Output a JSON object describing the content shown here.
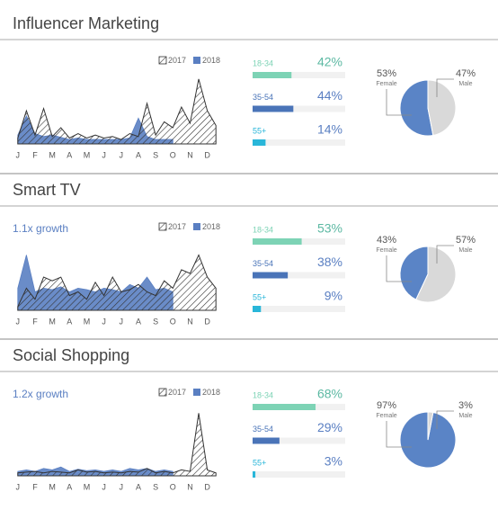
{
  "chart_data": [
    {
      "type": "area",
      "title": "Influencer Marketing",
      "x": [
        0,
        1,
        2,
        3,
        4,
        5,
        6,
        7,
        8,
        9,
        10,
        11,
        12,
        13,
        14,
        15,
        16,
        17,
        18,
        19,
        20,
        21,
        22,
        23
      ],
      "xlim": [
        -0.5,
        23.5
      ],
      "xticks": [
        {
          "value": 0,
          "label": "J"
        },
        {
          "value": 2,
          "label": "F"
        },
        {
          "value": 4,
          "label": "M"
        },
        {
          "value": 6,
          "label": "A"
        },
        {
          "value": 8,
          "label": "M"
        },
        {
          "value": 10,
          "label": "J"
        },
        {
          "value": 12,
          "label": "J"
        },
        {
          "value": 14,
          "label": "A"
        },
        {
          "value": 16,
          "label": "S"
        },
        {
          "value": 18,
          "label": "O"
        },
        {
          "value": 20,
          "label": "N"
        },
        {
          "value": 22,
          "label": "D"
        }
      ],
      "ylim": [
        0,
        100
      ],
      "series": [
        {
          "name": "2017",
          "color": "#333333",
          "pattern": "hatch",
          "values": [
            8,
            45,
            12,
            48,
            10,
            22,
            8,
            14,
            8,
            12,
            8,
            10,
            6,
            14,
            10,
            55,
            12,
            30,
            22,
            50,
            28,
            88,
            45,
            25
          ]
        },
        {
          "name": "2018",
          "color": "#5a7fc2",
          "values": [
            12,
            38,
            14,
            10,
            12,
            9,
            6,
            8,
            6,
            6,
            6,
            6,
            6,
            8,
            35,
            10,
            6,
            6,
            6,
            null,
            null,
            null,
            null,
            null
          ]
        }
      ]
    },
    {
      "type": "hbar",
      "categories": [
        "18-34",
        "35-54",
        "55+"
      ],
      "values": [
        42,
        44,
        14
      ],
      "value_labels": [
        "42%",
        "44%",
        "14%"
      ],
      "colors": [
        "#7dd3b5",
        "#4a74b8",
        "#29b6d9"
      ],
      "xlim": [
        0,
        100
      ]
    },
    {
      "type": "pie",
      "categories": [
        "Female",
        "Male"
      ],
      "values": [
        53,
        47
      ],
      "value_labels": [
        "53%",
        "47%"
      ],
      "colors": [
        "#5a84c6",
        "#d9d9d9"
      ]
    },
    {
      "type": "area",
      "title": "Smart TV",
      "subtitle": "1.1x growth",
      "x": [
        0,
        1,
        2,
        3,
        4,
        5,
        6,
        7,
        8,
        9,
        10,
        11,
        12,
        13,
        14,
        15,
        16,
        17,
        18,
        19,
        20,
        21,
        22,
        23
      ],
      "xlim": [
        -0.5,
        23.5
      ],
      "xticks": [
        {
          "value": 0,
          "label": "J"
        },
        {
          "value": 2,
          "label": "F"
        },
        {
          "value": 4,
          "label": "M"
        },
        {
          "value": 6,
          "label": "A"
        },
        {
          "value": 8,
          "label": "M"
        },
        {
          "value": 10,
          "label": "J"
        },
        {
          "value": 12,
          "label": "J"
        },
        {
          "value": 14,
          "label": "A"
        },
        {
          "value": 16,
          "label": "S"
        },
        {
          "value": 18,
          "label": "O"
        },
        {
          "value": 20,
          "label": "N"
        },
        {
          "value": 22,
          "label": "D"
        }
      ],
      "ylim": [
        0,
        100
      ],
      "series": [
        {
          "name": "2017",
          "color": "#333333",
          "pattern": "hatch",
          "values": [
            5,
            30,
            15,
            45,
            40,
            45,
            20,
            25,
            15,
            38,
            20,
            45,
            25,
            28,
            35,
            25,
            20,
            40,
            30,
            55,
            50,
            75,
            45,
            30
          ]
        },
        {
          "name": "2018",
          "color": "#5a7fc2",
          "values": [
            30,
            75,
            25,
            30,
            28,
            32,
            25,
            30,
            28,
            25,
            30,
            28,
            25,
            35,
            30,
            45,
            28,
            30,
            25,
            null,
            null,
            null,
            null,
            null
          ]
        }
      ]
    },
    {
      "type": "hbar",
      "categories": [
        "18-34",
        "35-54",
        "55+"
      ],
      "values": [
        53,
        38,
        9
      ],
      "value_labels": [
        "53%",
        "38%",
        "9%"
      ],
      "colors": [
        "#7dd3b5",
        "#4a74b8",
        "#29b6d9"
      ],
      "xlim": [
        0,
        100
      ]
    },
    {
      "type": "pie",
      "categories": [
        "Female",
        "Male"
      ],
      "values": [
        43,
        57
      ],
      "value_labels": [
        "43%",
        "57%"
      ],
      "colors": [
        "#5a84c6",
        "#d9d9d9"
      ]
    },
    {
      "type": "area",
      "title": "Social Shopping",
      "subtitle": "1.2x growth",
      "x": [
        0,
        1,
        2,
        3,
        4,
        5,
        6,
        7,
        8,
        9,
        10,
        11,
        12,
        13,
        14,
        15,
        16,
        17,
        18,
        19,
        20,
        21,
        22,
        23
      ],
      "xlim": [
        -0.5,
        23.5
      ],
      "xticks": [
        {
          "value": 0,
          "label": "J"
        },
        {
          "value": 2,
          "label": "F"
        },
        {
          "value": 4,
          "label": "M"
        },
        {
          "value": 6,
          "label": "A"
        },
        {
          "value": 8,
          "label": "M"
        },
        {
          "value": 10,
          "label": "J"
        },
        {
          "value": 12,
          "label": "J"
        },
        {
          "value": 14,
          "label": "A"
        },
        {
          "value": 16,
          "label": "S"
        },
        {
          "value": 18,
          "label": "O"
        },
        {
          "value": 20,
          "label": "N"
        },
        {
          "value": 22,
          "label": "D"
        }
      ],
      "ylim": [
        0,
        100
      ],
      "series": [
        {
          "name": "2017",
          "color": "#333333",
          "pattern": "hatch",
          "values": [
            4,
            5,
            6,
            4,
            6,
            5,
            4,
            8,
            5,
            6,
            4,
            5,
            4,
            6,
            5,
            10,
            4,
            6,
            4,
            8,
            6,
            85,
            8,
            4
          ]
        },
        {
          "name": "2018",
          "color": "#5a7fc2",
          "values": [
            6,
            8,
            6,
            10,
            8,
            12,
            6,
            9,
            7,
            8,
            6,
            8,
            6,
            10,
            8,
            10,
            6,
            8,
            6,
            null,
            null,
            null,
            null,
            null
          ]
        }
      ]
    },
    {
      "type": "hbar",
      "categories": [
        "18-34",
        "35-54",
        "55+"
      ],
      "values": [
        68,
        29,
        3
      ],
      "value_labels": [
        "68%",
        "29%",
        "3%"
      ],
      "colors": [
        "#7dd3b5",
        "#4a74b8",
        "#29b6d9"
      ],
      "xlim": [
        0,
        100
      ]
    },
    {
      "type": "pie",
      "categories": [
        "Female",
        "Male"
      ],
      "values": [
        97,
        3
      ],
      "value_labels": [
        "97%",
        "3%"
      ],
      "colors": [
        "#5a84c6",
        "#d9d9d9"
      ]
    }
  ]
}
